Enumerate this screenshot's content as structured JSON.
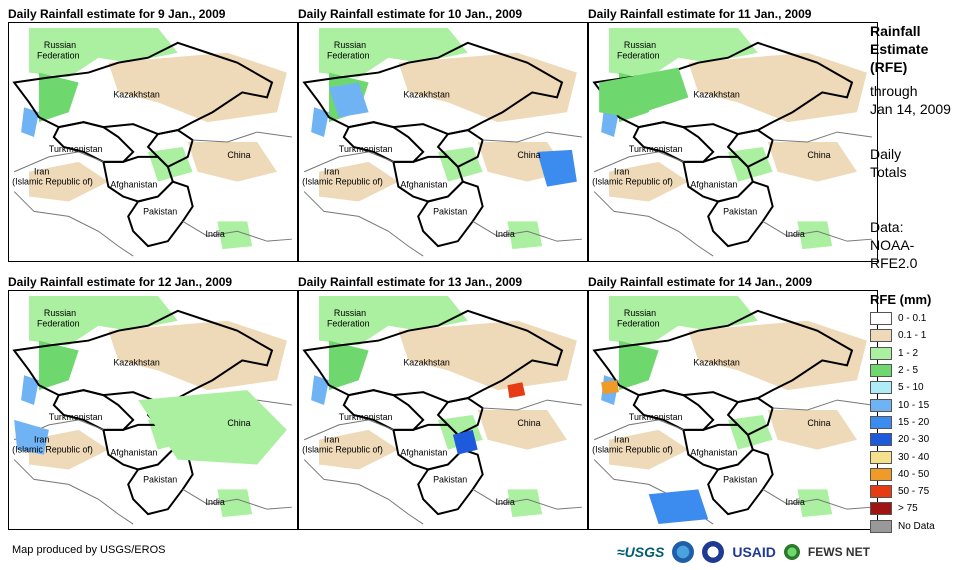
{
  "panels": [
    {
      "title": "Daily Rainfall estimate for 9 Jan., 2009"
    },
    {
      "title": "Daily Rainfall estimate for 10 Jan., 2009"
    },
    {
      "title": "Daily Rainfall estimate for 11 Jan., 2009"
    },
    {
      "title": "Daily Rainfall estimate for 12 Jan., 2009"
    },
    {
      "title": "Daily Rainfall estimate for 13 Jan., 2009"
    },
    {
      "title": "Daily Rainfall estimate for 14 Jan., 2009"
    }
  ],
  "map_labels": {
    "russia_1": "Russian",
    "russia_2": "Federation",
    "kazakhstan": "Kazakhstan",
    "turkmenistan": "Turkmenistan",
    "iran_1": "Iran",
    "iran_2": "(Islamic Republic of)",
    "afghanistan": "Afghanistan",
    "china": "China",
    "pakistan": "Pakistan",
    "india": "India"
  },
  "sidebar": {
    "line1": "Rainfall",
    "line2": "Estimate",
    "line3": "(RFE)",
    "line4": "through",
    "line5": "Jan 14, 2009",
    "line6": "Daily",
    "line7": "Totals",
    "line8": "Data:",
    "line9": "NOAA-",
    "line10": "RFE2.0"
  },
  "legend": {
    "title": "RFE (mm)",
    "items": [
      {
        "label": "0 - 0.1",
        "color": "#ffffff"
      },
      {
        "label": "0.1 - 1",
        "color": "#eed9b8"
      },
      {
        "label": "1 - 2",
        "color": "#aaf0a0"
      },
      {
        "label": "2 - 5",
        "color": "#6ed76e"
      },
      {
        "label": "5 - 10",
        "color": "#b0ecf7"
      },
      {
        "label": "10 - 15",
        "color": "#6fb3f5"
      },
      {
        "label": "15 - 20",
        "color": "#3c8cf0"
      },
      {
        "label": "20 - 30",
        "color": "#1e5adc"
      },
      {
        "label": "30 - 40",
        "color": "#f5e08c"
      },
      {
        "label": "40 - 50",
        "color": "#f09a28"
      },
      {
        "label": "50 - 75",
        "color": "#e63c14"
      },
      {
        "label": "> 75",
        "color": "#a01414"
      },
      {
        "label": "No Data",
        "color": "#999999"
      }
    ]
  },
  "footer": {
    "credit": "Map produced by USGS/EROS"
  },
  "logos": {
    "usgs": "≈USGS",
    "usaid": "USAID",
    "fews": "FEWS NET"
  }
}
